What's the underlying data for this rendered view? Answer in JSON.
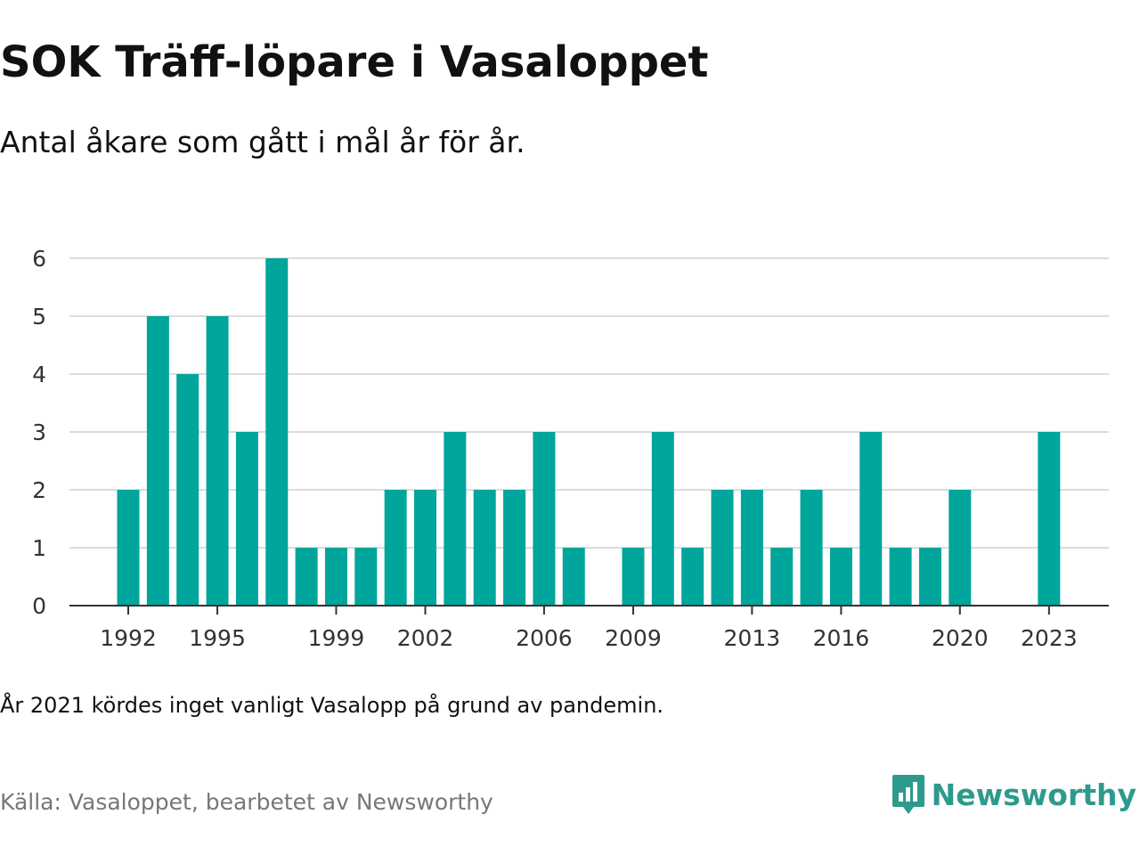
{
  "title": "SOK Träff-löpare i Vasaloppet",
  "subtitle": "Antal åkare som gått i mål år för år.",
  "note": "År 2021 kördes inget vanligt Vasalopp på grund av pandemin.",
  "source": "Källa: Vasaloppet, bearbetet av Newsworthy",
  "brand": {
    "name": "Newsworthy",
    "icon": "newsworthy-logo-icon",
    "color": "#2e9a8c"
  },
  "chart_data": {
    "type": "bar",
    "bar_color": "#00a59b",
    "grid": true,
    "ylim": [
      0,
      6
    ],
    "yticks": [
      0,
      1,
      2,
      3,
      4,
      5,
      6
    ],
    "xticks": [
      1992,
      1995,
      1999,
      2002,
      2006,
      2009,
      2013,
      2016,
      2020,
      2023
    ],
    "xlim": [
      1992,
      2023
    ],
    "categories": [
      1992,
      1993,
      1994,
      1995,
      1996,
      1997,
      1998,
      1999,
      2000,
      2001,
      2002,
      2003,
      2004,
      2005,
      2006,
      2007,
      2009,
      2010,
      2011,
      2012,
      2013,
      2014,
      2015,
      2016,
      2017,
      2018,
      2019,
      2020,
      2023
    ],
    "values": [
      2,
      5,
      4,
      5,
      3,
      6,
      1,
      1,
      1,
      2,
      2,
      3,
      2,
      2,
      3,
      1,
      1,
      3,
      1,
      2,
      2,
      1,
      2,
      1,
      3,
      1,
      1,
      2,
      3
    ],
    "xlabel": "",
    "ylabel": ""
  }
}
